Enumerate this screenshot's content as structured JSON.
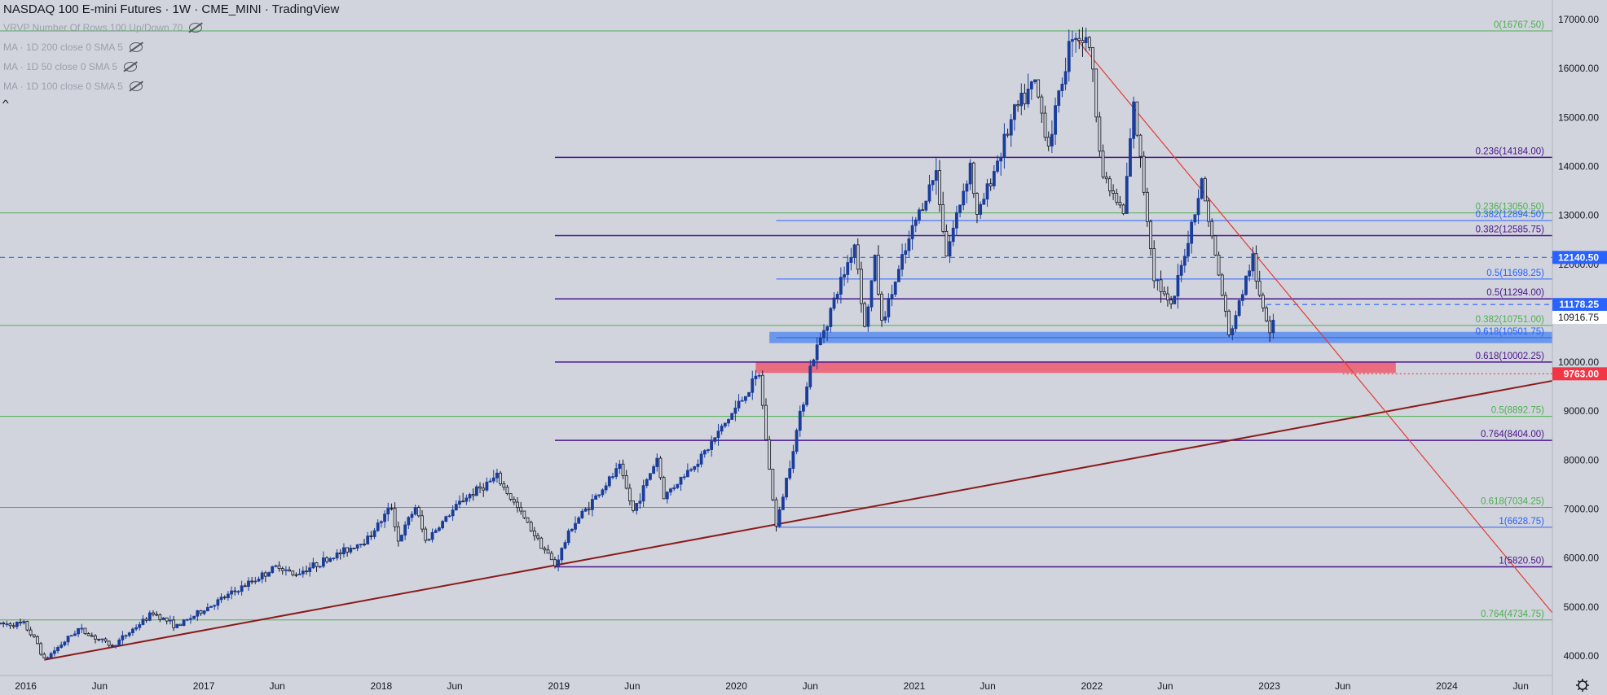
{
  "header": {
    "title": "NASDAQ 100 E-mini Futures · 1W · CME_MINI · TradingView",
    "indicators": [
      "VRVP Number Of Rows 100 Up/Down 70",
      "MA · 1D 200 close 0 SMA 5",
      "MA · 1D 50 close 0 SMA 5",
      "MA · 1D 100 close 0 SMA 5"
    ],
    "collapse_glyph": "^"
  },
  "colors": {
    "background": "#d1d4dc",
    "candle_up": "#1a3d9c",
    "candle_down": "#131722",
    "fib_green": "#4caf50",
    "fib_purple": "#4a148c",
    "fib_blue": "#2962ff",
    "trend_line": "#8b1a1a",
    "downtrend_line": "#e53935",
    "zone_blue": "#5b8def",
    "zone_red": "#ef5a6e",
    "last_price_box": "#2962ff",
    "level_9763_box": "#f23645"
  },
  "chart_data": {
    "type": "candlestick",
    "title": "NASDAQ 100 E-mini Futures · 1W · CME_MINI · TradingView",
    "ylim": [
      3600,
      17400
    ],
    "y_ticks": [
      4000,
      5000,
      6000,
      7000,
      8000,
      9000,
      10000,
      11000,
      12000,
      13000,
      14000,
      15000,
      16000,
      17000
    ],
    "y_tick_labels": [
      "4000.00",
      "5000.00",
      "6000.00",
      "7000.00",
      "8000.00",
      "9000.00",
      "10000.00",
      "11000.00",
      "12000.00",
      "13000.00",
      "14000.00",
      "15000.00",
      "16000.00",
      "17000.00"
    ],
    "xlim": [
      "2015-11-09",
      "2024-08-05"
    ],
    "x_ticks": [
      {
        "date": "2016-01-01",
        "label": "2016"
      },
      {
        "date": "2016-06-01",
        "label": "Jun"
      },
      {
        "date": "2017-01-01",
        "label": "2017"
      },
      {
        "date": "2017-06-01",
        "label": "Jun"
      },
      {
        "date": "2018-01-01",
        "label": "2018"
      },
      {
        "date": "2018-06-01",
        "label": "Jun"
      },
      {
        "date": "2019-01-01",
        "label": "2019"
      },
      {
        "date": "2019-06-01",
        "label": "Jun"
      },
      {
        "date": "2020-01-01",
        "label": "2020"
      },
      {
        "date": "2020-06-01",
        "label": "Jun"
      },
      {
        "date": "2021-01-01",
        "label": "2021"
      },
      {
        "date": "2021-06-01",
        "label": "Jun"
      },
      {
        "date": "2022-01-01",
        "label": "2022"
      },
      {
        "date": "2022-06-01",
        "label": "Jun"
      },
      {
        "date": "2023-01-01",
        "label": "2023"
      },
      {
        "date": "2023-06-01",
        "label": "Jun"
      },
      {
        "date": "2024-01-01",
        "label": "2024"
      },
      {
        "date": "2024-06-01",
        "label": "Jun"
      }
    ],
    "price_path": [
      [
        "2015-11-09",
        4650
      ],
      [
        "2015-12-28",
        4650
      ],
      [
        "2016-01-25",
        4250
      ],
      [
        "2016-02-08",
        3920
      ],
      [
        "2016-04-18",
        4550
      ],
      [
        "2016-06-27",
        4200
      ],
      [
        "2016-09-19",
        4880
      ],
      [
        "2016-11-07",
        4600
      ],
      [
        "2017-01-02",
        4950
      ],
      [
        "2017-06-05",
        5850
      ],
      [
        "2017-07-03",
        5650
      ],
      [
        "2017-10-09",
        6100
      ],
      [
        "2017-12-04",
        6400
      ],
      [
        "2018-01-22",
        7050
      ],
      [
        "2018-02-05",
        6350
      ],
      [
        "2018-03-12",
        7050
      ],
      [
        "2018-04-02",
        6350
      ],
      [
        "2018-06-18",
        7200
      ],
      [
        "2018-08-27",
        7650
      ],
      [
        "2018-10-29",
        6700
      ],
      [
        "2018-12-24",
        5850
      ],
      [
        "2019-01-28",
        6650
      ],
      [
        "2019-05-06",
        7850
      ],
      [
        "2019-06-03",
        6950
      ],
      [
        "2019-07-22",
        8050
      ],
      [
        "2019-08-05",
        7250
      ],
      [
        "2019-10-28",
        8150
      ],
      [
        "2020-02-17",
        9750
      ],
      [
        "2020-03-09",
        7800
      ],
      [
        "2020-03-23",
        6630
      ],
      [
        "2020-06-01",
        9900
      ],
      [
        "2020-09-01",
        12450
      ],
      [
        "2020-09-21",
        10700
      ],
      [
        "2020-10-12",
        12100
      ],
      [
        "2020-10-26",
        10800
      ],
      [
        "2021-01-04",
        12900
      ],
      [
        "2021-02-15",
        13900
      ],
      [
        "2021-03-08",
        12200
      ],
      [
        "2021-04-26",
        14050
      ],
      [
        "2021-05-10",
        12950
      ],
      [
        "2021-07-26",
        15100
      ],
      [
        "2021-09-06",
        15700
      ],
      [
        "2021-10-04",
        14450
      ],
      [
        "2021-11-22",
        16760
      ],
      [
        "2021-12-27",
        16500
      ],
      [
        "2022-01-24",
        13800
      ],
      [
        "2022-03-07",
        13020
      ],
      [
        "2022-03-28",
        15250
      ],
      [
        "2022-05-09",
        11800
      ],
      [
        "2022-06-13",
        11070
      ],
      [
        "2022-08-15",
        13700
      ],
      [
        "2022-10-03",
        11000
      ],
      [
        "2022-10-10",
        10500
      ],
      [
        "2022-11-28",
        12150
      ],
      [
        "2022-12-05",
        11600
      ],
      [
        "2023-01-02",
        10700
      ],
      [
        "2023-01-09",
        10916
      ]
    ],
    "last_price": 10916.75,
    "last_price_label": "10916.75",
    "horizontal_levels": [
      {
        "value": 12140.5,
        "label": "12140.50",
        "style": "dashed",
        "start": "2015-11-09"
      },
      {
        "value": 11178.25,
        "label": "11178.25",
        "style": "dashed",
        "start": "2022-12-26"
      },
      {
        "value": 9763.0,
        "label": "9763.00",
        "style": "dotted",
        "start": "2023-06-01"
      }
    ],
    "fib_retracements": [
      {
        "value": 16767.5,
        "label": "0(16767.50)",
        "color": "green",
        "start": "2015-11-09"
      },
      {
        "value": 13050.5,
        "label": "0.236(13050.50)",
        "color": "green",
        "start": "2015-11-09"
      },
      {
        "value": 10751.0,
        "label": "0.382(10751.00)",
        "color": "green",
        "start": "2015-11-09"
      },
      {
        "value": 8892.75,
        "label": "0.5(8892.75)",
        "color": "green",
        "start": "2015-11-09"
      },
      {
        "value": 7034.25,
        "label": "0.618(7034.25)",
        "color": "green",
        "start": "2015-11-09"
      },
      {
        "value": 4734.75,
        "label": "0.764(4734.75)",
        "color": "green",
        "start": "2015-11-09"
      },
      {
        "value": 14184.0,
        "label": "0.236(14184.00)",
        "color": "purple",
        "start": "2018-12-24"
      },
      {
        "value": 12585.75,
        "label": "0.382(12585.75)",
        "color": "purple",
        "start": "2018-12-24"
      },
      {
        "value": 11294.0,
        "label": "0.5(11294.00)",
        "color": "purple",
        "start": "2018-12-24"
      },
      {
        "value": 10002.25,
        "label": "0.618(10002.25)",
        "color": "purple",
        "start": "2018-12-24"
      },
      {
        "value": 8404.0,
        "label": "0.764(8404.00)",
        "color": "purple",
        "start": "2018-12-24"
      },
      {
        "value": 5820.5,
        "label": "1(5820.50)",
        "color": "purple",
        "start": "2018-12-24"
      },
      {
        "value": 12894.5,
        "label": "0.382(12894.50)",
        "color": "blue",
        "start": "2020-03-23"
      },
      {
        "value": 11698.25,
        "label": "0.5(11698.25)",
        "color": "blue",
        "start": "2020-03-23"
      },
      {
        "value": 10501.75,
        "label": "0.618(10501.75)",
        "color": "blue",
        "start": "2020-03-23"
      },
      {
        "value": 6628.75,
        "label": "1(6628.75)",
        "color": "blue",
        "start": "2020-03-23"
      }
    ],
    "zones": [
      {
        "name": "blue-zone",
        "x0": "2020-03-09",
        "x1": "2024-08-05",
        "y0": 10390,
        "y1": 10620
      },
      {
        "name": "red-zone",
        "x0": "2020-02-10",
        "x1": "2023-09-18",
        "y0": 9780,
        "y1": 10000
      }
    ],
    "trendlines": [
      {
        "name": "long-term-support",
        "points": [
          [
            "2016-02-08",
            3920
          ],
          [
            "2024-08-05",
            9620
          ]
        ]
      },
      {
        "name": "downtrend-resistance",
        "points": [
          [
            "2021-11-29",
            16620
          ],
          [
            "2024-08-05",
            4880
          ]
        ]
      }
    ]
  }
}
